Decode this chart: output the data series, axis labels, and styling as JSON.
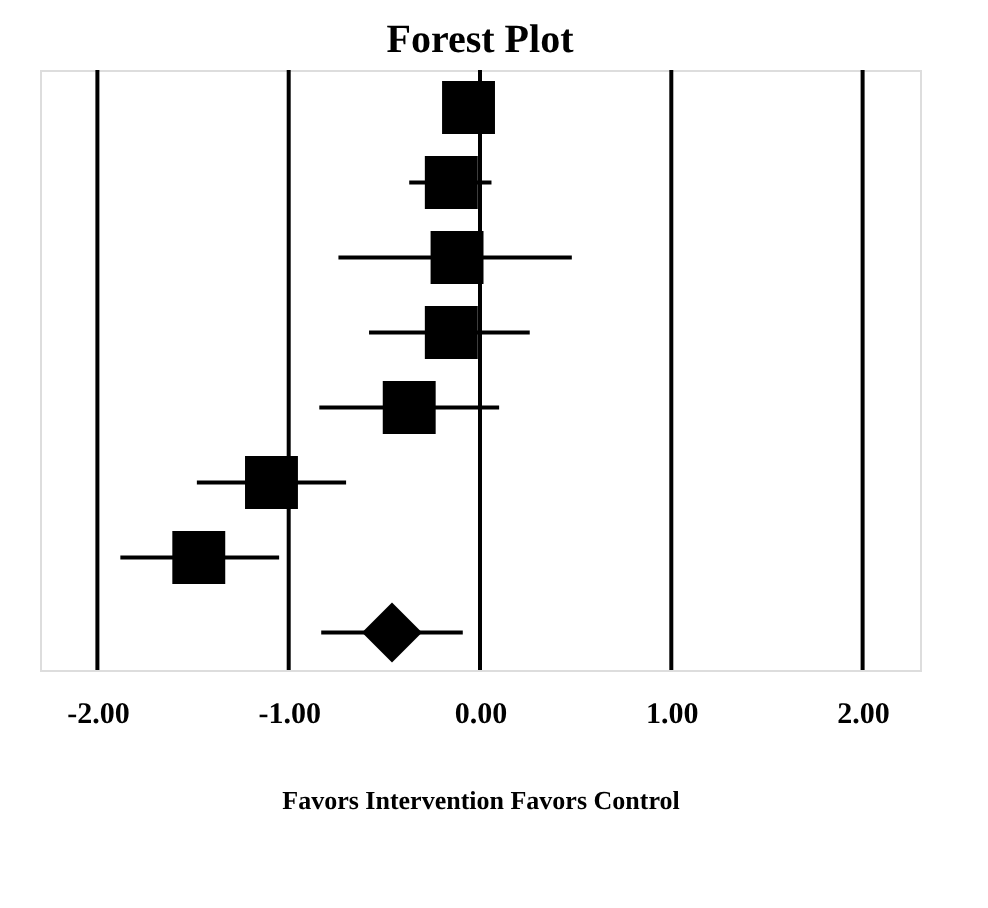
{
  "chart_data": {
    "type": "scatter",
    "orientation": "horizontal",
    "title": "Forest Plot",
    "xlabel": "Favors Intervention  Favors Control",
    "categories": [
      null,
      null,
      null,
      null,
      null,
      null,
      null,
      null
    ],
    "series": [
      {
        "marker": "square",
        "color": "#000000",
        "values": [
          -0.06,
          -0.15,
          -0.12,
          -0.15,
          -0.37,
          -1.09,
          -1.47,
          null
        ],
        "errors": [
          null,
          [
            -0.37,
            0.06
          ],
          [
            -0.74,
            0.48
          ],
          [
            -0.58,
            0.26
          ],
          [
            -0.84,
            0.1
          ],
          [
            -1.48,
            -0.7
          ],
          [
            -1.88,
            -1.05
          ],
          null
        ]
      },
      {
        "marker": "diamond",
        "color": "#000000",
        "values": [
          null,
          null,
          null,
          null,
          null,
          null,
          null,
          -0.46
        ],
        "errors": [
          null,
          null,
          null,
          null,
          null,
          null,
          null,
          [
            -0.83,
            -0.09
          ]
        ]
      }
    ],
    "xlim": [
      -2.3,
      2.3
    ],
    "xticks": [
      {
        "value": -2,
        "label": "-2.00"
      },
      {
        "value": -1,
        "label": "-1.00"
      },
      {
        "value": 0,
        "label": "0.00"
      },
      {
        "value": 1,
        "label": "1.00"
      },
      {
        "value": 2,
        "label": "2.00"
      }
    ],
    "grid": "x",
    "tick_labels": "x"
  }
}
